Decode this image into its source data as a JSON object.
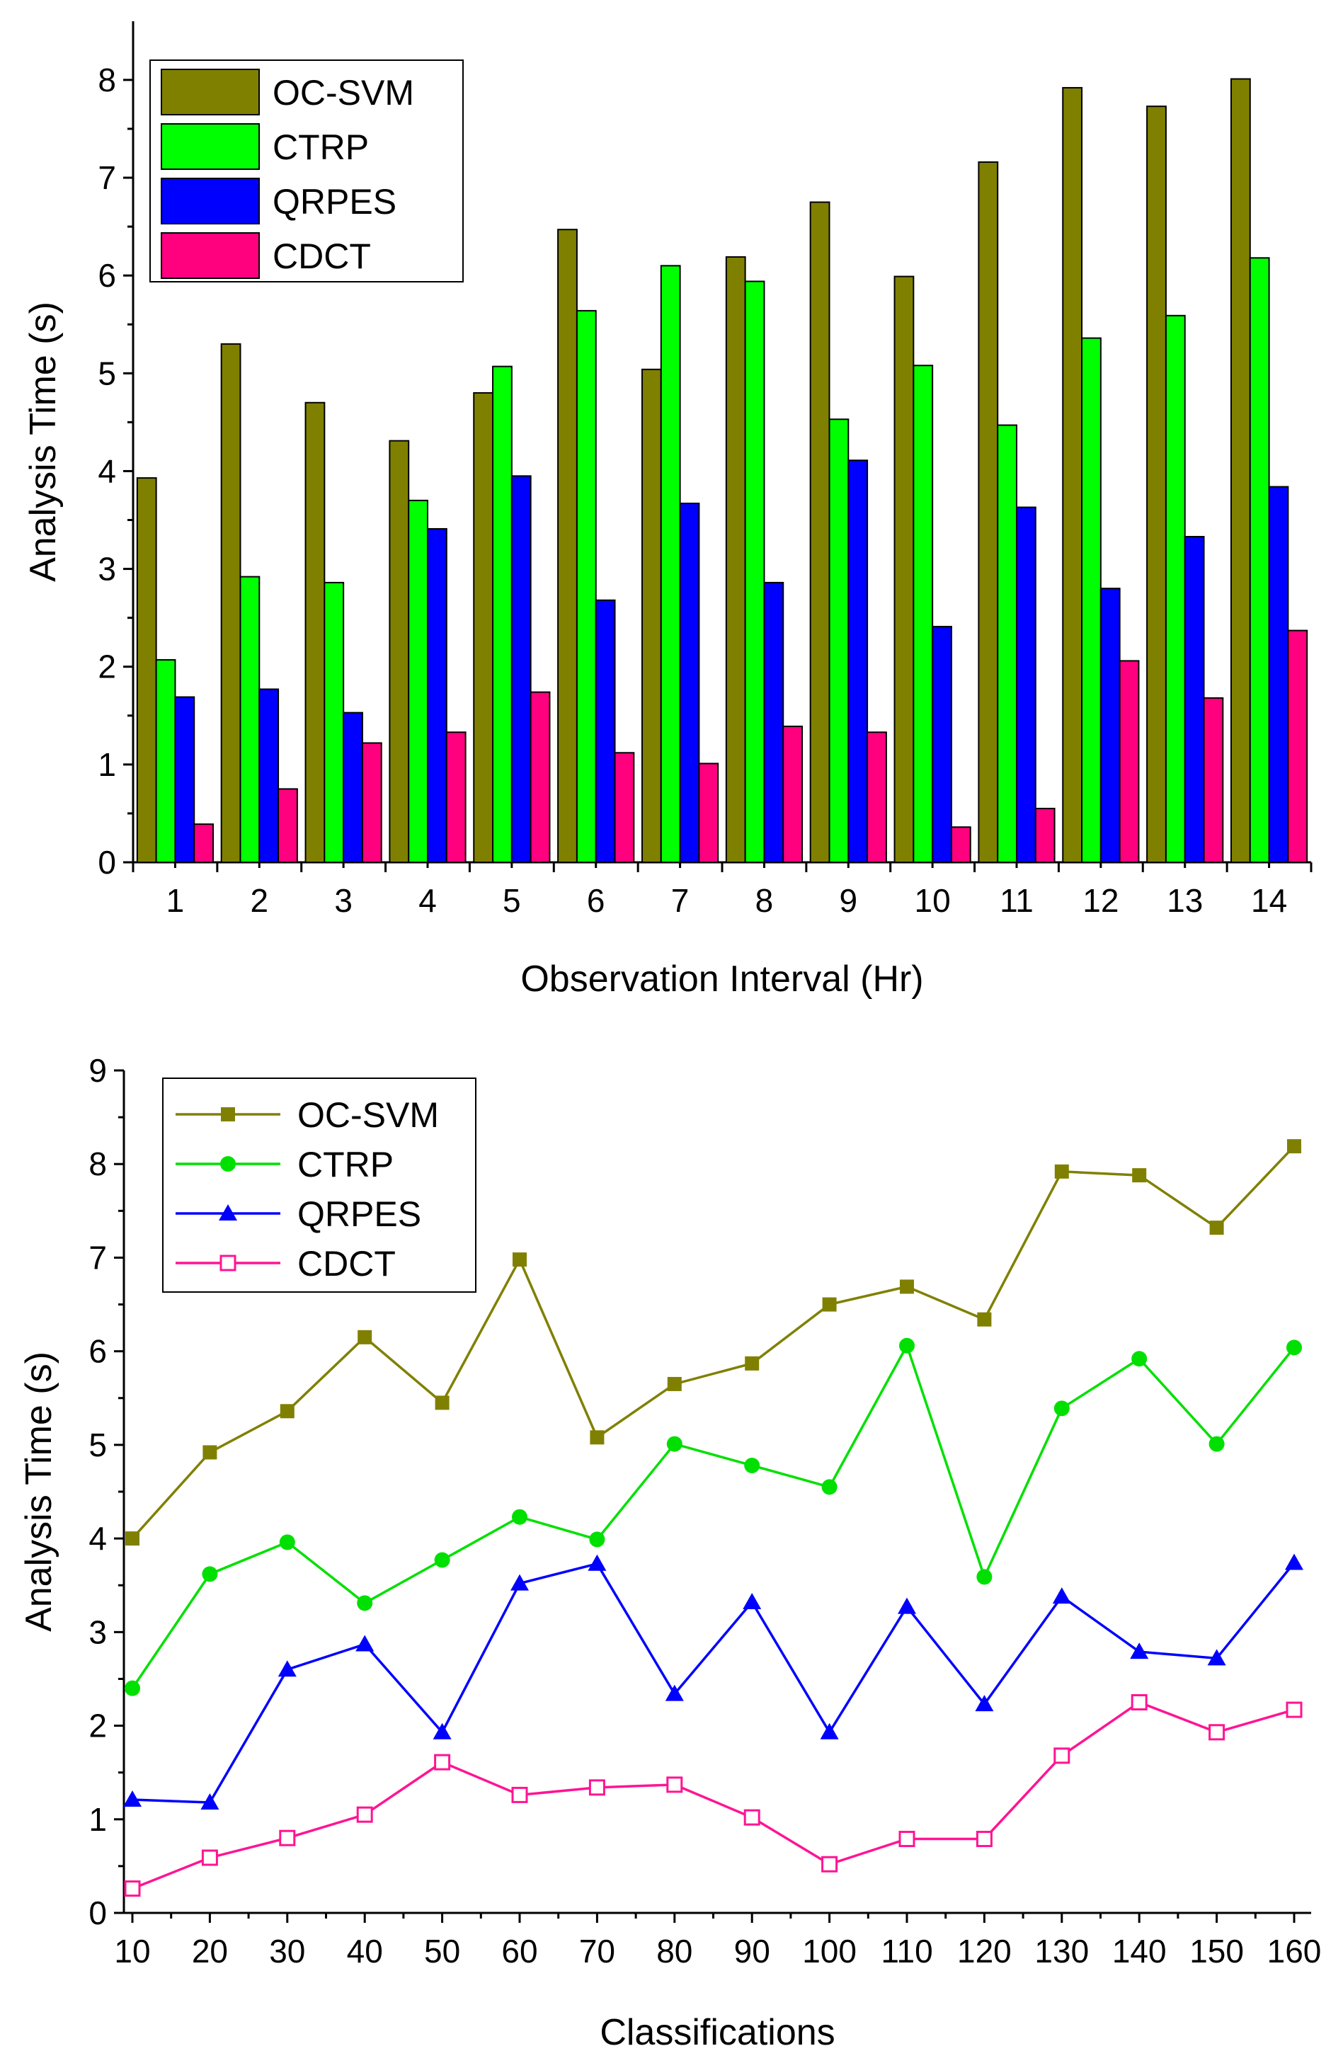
{
  "chart_data": [
    {
      "type": "bar",
      "title": "",
      "xlabel": "Observation Interval (Hr)",
      "ylabel": "Analysis Time (s)",
      "ylim": [
        0,
        8.6
      ],
      "yticks": [
        0,
        1,
        2,
        3,
        4,
        5,
        6,
        7,
        8
      ],
      "categories": [
        "1",
        "2",
        "3",
        "4",
        "5",
        "6",
        "7",
        "8",
        "9",
        "10",
        "11",
        "12",
        "13",
        "14"
      ],
      "legend_position": "top-left",
      "grid": false,
      "series": [
        {
          "name": "OC-SVM",
          "color": "#808000",
          "values": [
            3.93,
            5.3,
            4.7,
            4.31,
            4.8,
            6.47,
            5.04,
            6.19,
            6.75,
            5.99,
            7.16,
            7.92,
            7.73,
            8.01
          ]
        },
        {
          "name": "CTRP",
          "color": "#00ff00",
          "values": [
            2.07,
            2.92,
            2.86,
            3.7,
            5.07,
            5.64,
            6.1,
            5.94,
            4.53,
            5.08,
            4.47,
            5.36,
            5.59,
            6.18
          ]
        },
        {
          "name": "QRPES",
          "color": "#0000ff",
          "values": [
            1.69,
            1.77,
            1.53,
            3.41,
            3.95,
            2.68,
            3.67,
            2.86,
            4.11,
            2.41,
            3.63,
            2.8,
            3.33,
            3.84
          ]
        },
        {
          "name": "CDCT",
          "color": "#ff007f",
          "values": [
            0.39,
            0.75,
            1.22,
            1.33,
            1.74,
            1.12,
            1.01,
            1.39,
            1.33,
            0.36,
            0.55,
            2.06,
            1.68,
            2.37
          ]
        }
      ]
    },
    {
      "type": "line",
      "title": "",
      "xlabel": "Classifications",
      "ylabel": "Analysis Time (s)",
      "ylim": [
        0,
        9
      ],
      "yticks": [
        0,
        1,
        2,
        3,
        4,
        5,
        6,
        7,
        8,
        9
      ],
      "x": [
        10,
        20,
        30,
        40,
        50,
        60,
        70,
        80,
        90,
        100,
        110,
        120,
        130,
        140,
        150,
        160
      ],
      "xlim": [
        10,
        160
      ],
      "legend_position": "top-left",
      "grid": false,
      "series": [
        {
          "name": "OC-SVM",
          "color": "#808000",
          "marker": "square",
          "values": [
            4.0,
            4.92,
            5.36,
            6.15,
            5.45,
            6.98,
            5.08,
            5.65,
            5.87,
            6.5,
            6.69,
            6.34,
            7.92,
            7.88,
            7.32,
            8.19
          ]
        },
        {
          "name": "CTRP",
          "color": "#00e000",
          "marker": "circle",
          "values": [
            2.4,
            3.62,
            3.96,
            3.31,
            3.77,
            4.23,
            3.99,
            5.01,
            4.78,
            4.55,
            6.06,
            3.59,
            5.39,
            5.92,
            5.01,
            6.04
          ]
        },
        {
          "name": "QRPES",
          "color": "#0000ff",
          "marker": "triangle",
          "values": [
            1.21,
            1.18,
            2.6,
            2.87,
            1.93,
            3.52,
            3.73,
            2.34,
            3.32,
            1.93,
            3.27,
            2.23,
            3.38,
            2.79,
            2.72,
            3.74
          ]
        },
        {
          "name": "CDCT",
          "color": "#ff1493",
          "marker": "open-square",
          "values": [
            0.26,
            0.59,
            0.8,
            1.05,
            1.61,
            1.26,
            1.34,
            1.37,
            1.02,
            0.52,
            0.79,
            0.79,
            1.68,
            2.25,
            1.93,
            2.17
          ]
        }
      ]
    }
  ]
}
